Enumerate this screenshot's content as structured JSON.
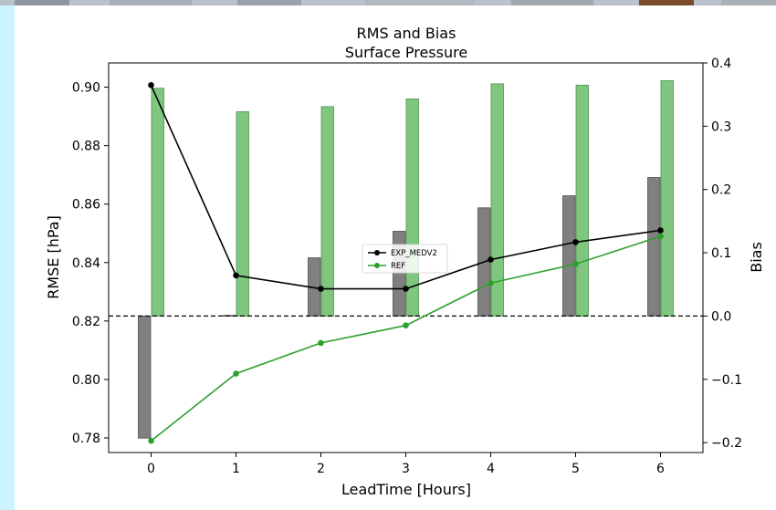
{
  "colors": {
    "frame_left": "#ccf4ff",
    "rmse_exp": "#000000",
    "rmse_ref": "#2ca02c",
    "bias_exp": "#808080",
    "bias_ref": "#7fc77f",
    "zero_line": "#000000"
  },
  "chart_data": {
    "type": "bar+line",
    "title": "RMS and Bias",
    "subtitle": "Surface Pressure",
    "xlabel": "LeadTime [Hours]",
    "ylabel": "RMSE [hPa]",
    "ylabel_right": "Bias",
    "x": [
      0,
      1,
      2,
      3,
      4,
      5,
      6
    ],
    "xlim": [
      -0.5,
      6.5
    ],
    "ylim": [
      0.775,
      0.9083
    ],
    "ylim_right": [
      -0.2157,
      0.4
    ],
    "yticks": [
      0.78,
      0.8,
      0.82,
      0.84,
      0.86,
      0.88,
      0.9
    ],
    "ytick_labels": [
      "0.78",
      "0.80",
      "0.82",
      "0.84",
      "0.86",
      "0.88",
      "0.90"
    ],
    "yticks_right": [
      -0.2,
      -0.1,
      0.0,
      0.1,
      0.2,
      0.3,
      0.4
    ],
    "ytick_labels_right": [
      "−0.2",
      "−0.1",
      "0.0",
      "0.1",
      "0.2",
      "0.3",
      "0.4"
    ],
    "zero_line": 0.0,
    "legend_position": "center",
    "series": [
      {
        "name": "EXP_MEDV2",
        "kind": "line",
        "axis": "left",
        "color": "#000000",
        "values": [
          0.9007,
          0.8356,
          0.831,
          0.831,
          0.841,
          0.847,
          0.851
        ]
      },
      {
        "name": "REF",
        "kind": "line",
        "axis": "left",
        "color": "#2ca02c",
        "values": [
          0.779,
          0.802,
          0.8125,
          0.8185,
          0.833,
          0.8395,
          0.849
        ]
      }
    ],
    "bias_bars": [
      {
        "axis": "right",
        "color": "#808080",
        "values": [
          -0.193,
          0.001,
          0.092,
          0.134,
          0.171,
          0.19,
          0.219
        ]
      },
      {
        "axis": "right",
        "color": "#7fc77f",
        "values": [
          0.36,
          0.323,
          0.331,
          0.343,
          0.367,
          0.365,
          0.372
        ]
      }
    ]
  }
}
